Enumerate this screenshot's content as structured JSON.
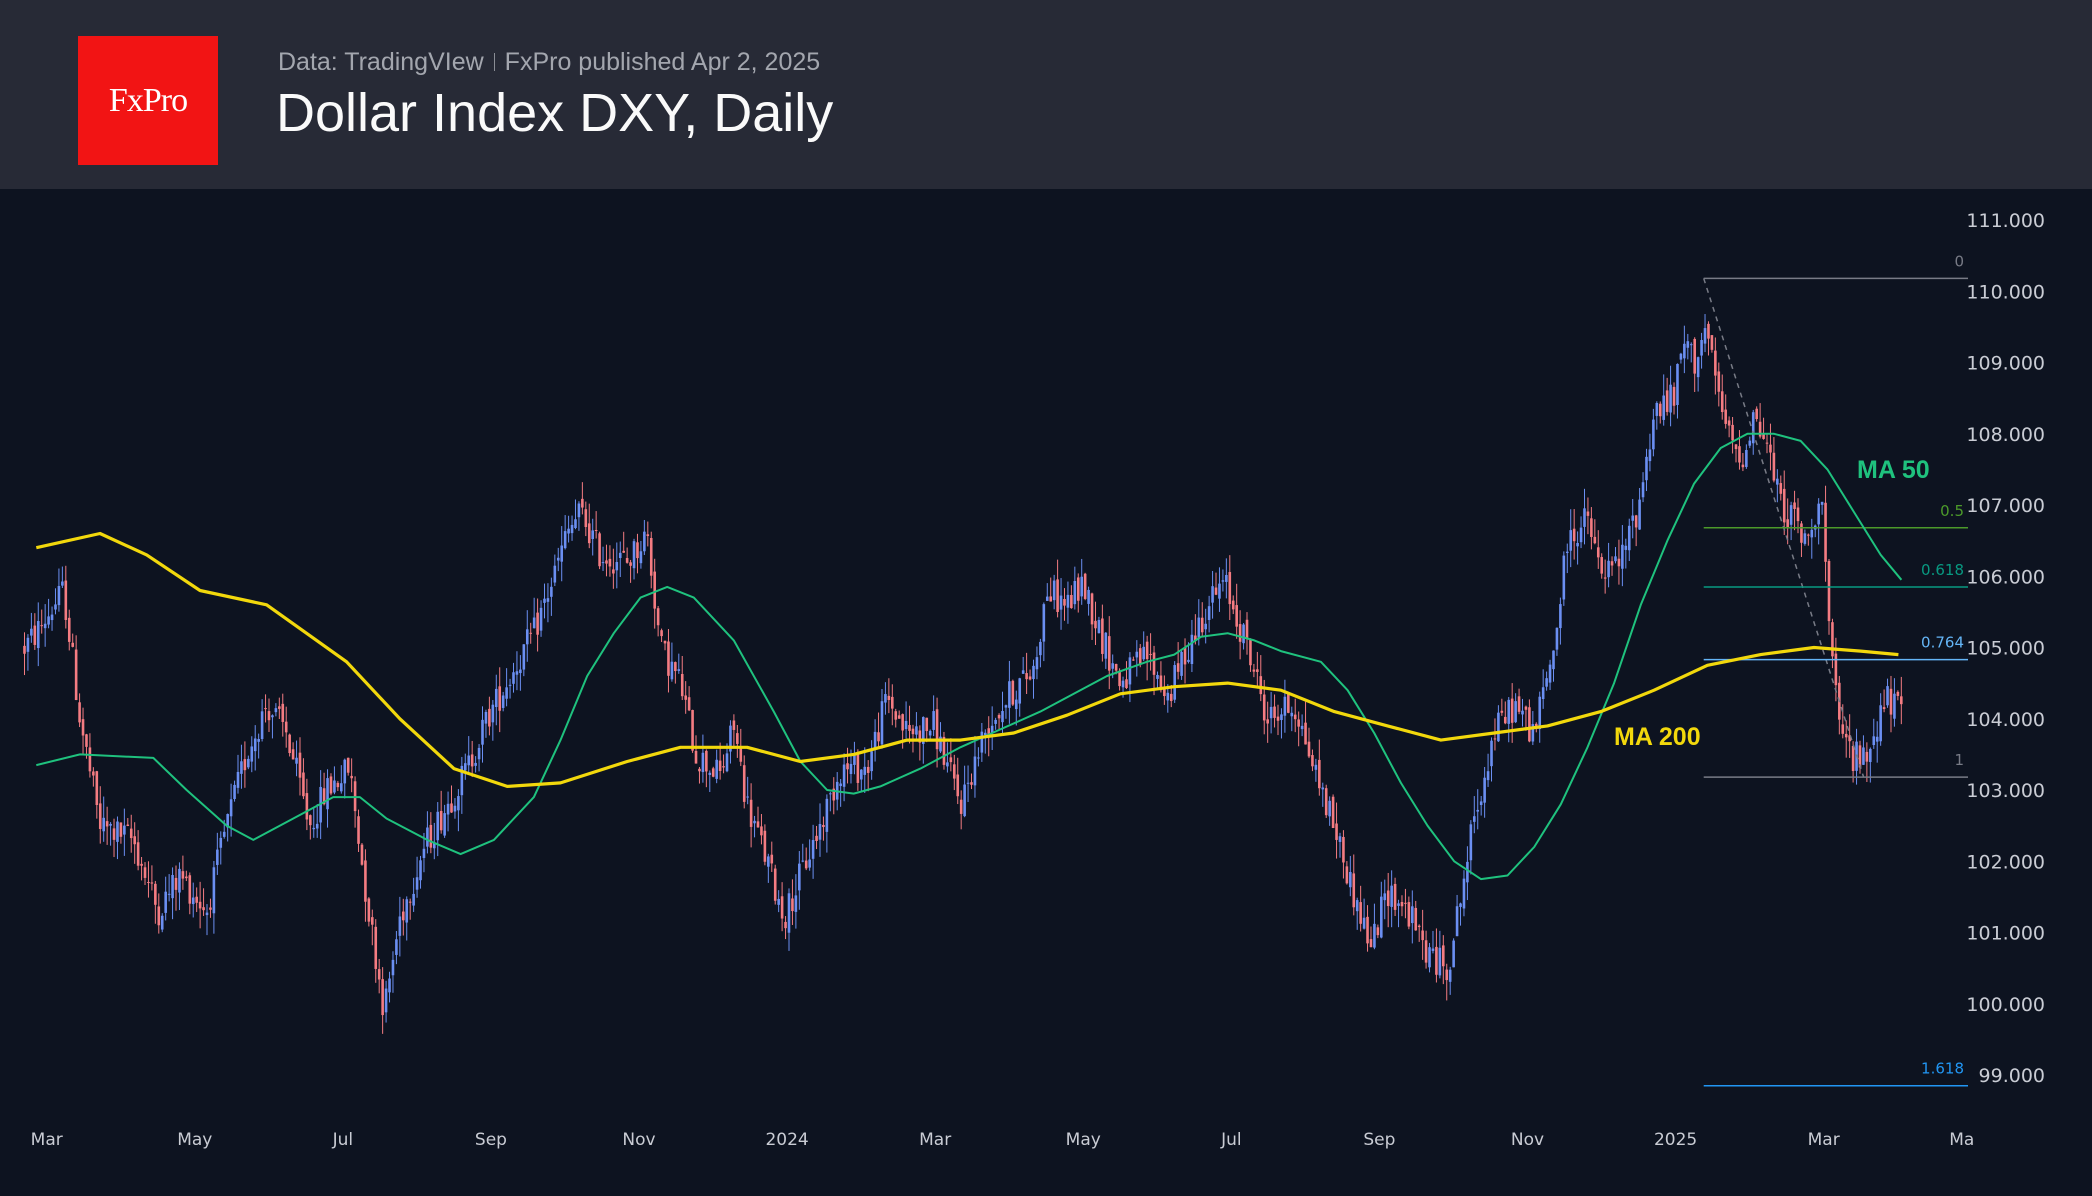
{
  "header": {
    "logo_text": "FxPro",
    "data_source": "Data: TradingVIew",
    "published": "FxPro published Apr 2, 2025",
    "title": "Dollar Index DXY, Daily"
  },
  "colors": {
    "header_bg": "#272a36",
    "chart_bg": "#0d1320",
    "logo_red": "#f21414",
    "candle_up": "#6b8ff2",
    "candle_down": "#f47c82",
    "ma50": "#1fc27e",
    "ma200": "#f2d80c"
  },
  "chart_data": {
    "type": "candlestick",
    "title": "Dollar Index DXY, Daily",
    "x_unit": "months since Mar 2023",
    "x_ticks": [
      {
        "m": 0,
        "label": "Mar"
      },
      {
        "m": 2,
        "label": "May"
      },
      {
        "m": 4,
        "label": "Jul"
      },
      {
        "m": 6,
        "label": "Sep"
      },
      {
        "m": 8,
        "label": "Nov"
      },
      {
        "m": 10,
        "label": "2024"
      },
      {
        "m": 12,
        "label": "Mar"
      },
      {
        "m": 14,
        "label": "May"
      },
      {
        "m": 16,
        "label": "Jul"
      },
      {
        "m": 18,
        "label": "Sep"
      },
      {
        "m": 20,
        "label": "Nov"
      },
      {
        "m": 22,
        "label": "2025"
      },
      {
        "m": 24,
        "label": "Mar"
      },
      {
        "m": 26,
        "label": "Ma"
      }
    ],
    "y_ticks": [
      "111.000",
      "110.000",
      "109.000",
      "108.000",
      "107.000",
      "106.000",
      "105.000",
      "104.000",
      "103.000",
      "102.000",
      "101.000",
      "100.000",
      "99.000"
    ],
    "ylim": [
      99,
      111
    ],
    "price_path": [
      [
        -0.3,
        105.0
      ],
      [
        -0.14,
        105.2
      ],
      [
        0.23,
        105.8
      ],
      [
        0.45,
        104.0
      ],
      [
        0.72,
        102.5
      ],
      [
        1.17,
        102.3
      ],
      [
        1.5,
        101.3
      ],
      [
        1.8,
        101.8
      ],
      [
        2.16,
        101.3
      ],
      [
        2.43,
        102.5
      ],
      [
        2.7,
        103.5
      ],
      [
        2.97,
        104.2
      ],
      [
        3.24,
        103.8
      ],
      [
        3.55,
        102.5
      ],
      [
        3.78,
        103.0
      ],
      [
        4.09,
        103.3
      ],
      [
        4.32,
        101.5
      ],
      [
        4.56,
        99.9
      ],
      [
        4.77,
        101.2
      ],
      [
        5.1,
        102.2
      ],
      [
        5.41,
        102.8
      ],
      [
        5.68,
        103.3
      ],
      [
        5.95,
        104.0
      ],
      [
        6.31,
        104.7
      ],
      [
        6.58,
        105.2
      ],
      [
        6.85,
        106.0
      ],
      [
        7.03,
        106.6
      ],
      [
        7.21,
        106.9
      ],
      [
        7.48,
        106.3
      ],
      [
        7.84,
        106.2
      ],
      [
        8.11,
        106.6
      ],
      [
        8.29,
        105.0
      ],
      [
        8.56,
        104.5
      ],
      [
        8.77,
        103.5
      ],
      [
        9.1,
        103.2
      ],
      [
        9.28,
        103.9
      ],
      [
        9.46,
        102.8
      ],
      [
        9.73,
        102.0
      ],
      [
        9.96,
        101.2
      ],
      [
        10.18,
        101.8
      ],
      [
        10.45,
        102.5
      ],
      [
        10.72,
        103.3
      ],
      [
        11.08,
        103.3
      ],
      [
        11.35,
        104.3
      ],
      [
        11.62,
        103.8
      ],
      [
        11.98,
        103.9
      ],
      [
        12.34,
        102.8
      ],
      [
        12.7,
        103.9
      ],
      [
        13.06,
        104.4
      ],
      [
        13.33,
        104.7
      ],
      [
        13.51,
        105.8
      ],
      [
        13.78,
        105.6
      ],
      [
        14.0,
        105.9
      ],
      [
        14.23,
        105.2
      ],
      [
        14.5,
        104.5
      ],
      [
        14.86,
        104.9
      ],
      [
        15.14,
        104.3
      ],
      [
        15.41,
        105.0
      ],
      [
        15.68,
        105.6
      ],
      [
        15.91,
        105.9
      ],
      [
        16.22,
        105.0
      ],
      [
        16.49,
        104.0
      ],
      [
        16.85,
        104.2
      ],
      [
        17.12,
        103.3
      ],
      [
        17.39,
        102.5
      ],
      [
        17.66,
        101.5
      ],
      [
        17.89,
        100.8
      ],
      [
        18.11,
        101.6
      ],
      [
        18.38,
        101.3
      ],
      [
        18.65,
        100.7
      ],
      [
        18.92,
        100.5
      ],
      [
        19.1,
        101.5
      ],
      [
        19.28,
        102.6
      ],
      [
        19.55,
        103.8
      ],
      [
        19.82,
        104.2
      ],
      [
        20.09,
        103.8
      ],
      [
        20.36,
        105.0
      ],
      [
        20.54,
        106.5
      ],
      [
        20.81,
        106.8
      ],
      [
        20.99,
        106.0
      ],
      [
        21.26,
        106.2
      ],
      [
        21.5,
        107.0
      ],
      [
        21.71,
        108.3
      ],
      [
        21.98,
        108.5
      ],
      [
        22.11,
        109.3
      ],
      [
        22.25,
        109.0
      ],
      [
        22.4,
        109.5
      ],
      [
        22.52,
        108.8
      ],
      [
        22.7,
        108.0
      ],
      [
        22.88,
        107.6
      ],
      [
        23.06,
        108.3
      ],
      [
        23.24,
        107.8
      ],
      [
        23.42,
        107.0
      ],
      [
        23.6,
        106.8
      ],
      [
        23.78,
        106.4
      ],
      [
        23.96,
        107.3
      ],
      [
        24.09,
        105.0
      ],
      [
        24.2,
        103.9
      ],
      [
        24.38,
        103.5
      ],
      [
        24.56,
        103.4
      ],
      [
        24.68,
        103.8
      ],
      [
        24.83,
        104.3
      ],
      [
        24.95,
        104.2
      ],
      [
        25.05,
        104.0
      ]
    ],
    "series": [
      {
        "name": "MA 50",
        "label": "MA 50",
        "points": [
          [
            -0.14,
            103.35
          ],
          [
            0.45,
            103.5
          ],
          [
            1.44,
            103.45
          ],
          [
            1.89,
            103.0
          ],
          [
            2.43,
            102.5
          ],
          [
            2.79,
            102.3
          ],
          [
            3.33,
            102.6
          ],
          [
            3.87,
            102.9
          ],
          [
            4.23,
            102.9
          ],
          [
            4.59,
            102.6
          ],
          [
            5.14,
            102.3
          ],
          [
            5.59,
            102.1
          ],
          [
            6.04,
            102.3
          ],
          [
            6.58,
            102.9
          ],
          [
            6.94,
            103.7
          ],
          [
            7.3,
            104.6
          ],
          [
            7.66,
            105.2
          ],
          [
            8.02,
            105.7
          ],
          [
            8.38,
            105.85
          ],
          [
            8.74,
            105.7
          ],
          [
            9.28,
            105.1
          ],
          [
            9.82,
            104.1
          ],
          [
            10.18,
            103.4
          ],
          [
            10.54,
            103.0
          ],
          [
            10.9,
            102.95
          ],
          [
            11.26,
            103.05
          ],
          [
            11.8,
            103.3
          ],
          [
            12.34,
            103.6
          ],
          [
            12.88,
            103.85
          ],
          [
            13.42,
            104.1
          ],
          [
            13.78,
            104.3
          ],
          [
            14.32,
            104.6
          ],
          [
            14.86,
            104.8
          ],
          [
            15.23,
            104.9
          ],
          [
            15.59,
            105.15
          ],
          [
            15.95,
            105.2
          ],
          [
            16.31,
            105.1
          ],
          [
            16.67,
            104.95
          ],
          [
            17.21,
            104.8
          ],
          [
            17.57,
            104.4
          ],
          [
            17.93,
            103.8
          ],
          [
            18.29,
            103.1
          ],
          [
            18.65,
            102.5
          ],
          [
            19.01,
            102.0
          ],
          [
            19.37,
            101.75
          ],
          [
            19.73,
            101.8
          ],
          [
            20.09,
            102.2
          ],
          [
            20.45,
            102.8
          ],
          [
            20.81,
            103.6
          ],
          [
            21.17,
            104.5
          ],
          [
            21.53,
            105.6
          ],
          [
            21.89,
            106.5
          ],
          [
            22.25,
            107.3
          ],
          [
            22.61,
            107.8
          ],
          [
            22.97,
            108.0
          ],
          [
            23.33,
            108.0
          ],
          [
            23.69,
            107.9
          ],
          [
            24.05,
            107.5
          ],
          [
            24.41,
            106.9
          ],
          [
            24.77,
            106.3
          ],
          [
            25.05,
            105.95
          ]
        ]
      },
      {
        "name": "MA 200",
        "label": "MA 200",
        "points": [
          [
            -0.14,
            106.4
          ],
          [
            0.72,
            106.6
          ],
          [
            1.35,
            106.3
          ],
          [
            2.07,
            105.8
          ],
          [
            2.97,
            105.6
          ],
          [
            4.05,
            104.8
          ],
          [
            4.77,
            104.0
          ],
          [
            5.5,
            103.3
          ],
          [
            6.22,
            103.05
          ],
          [
            6.94,
            103.1
          ],
          [
            7.84,
            103.4
          ],
          [
            8.56,
            103.6
          ],
          [
            9.46,
            103.6
          ],
          [
            10.18,
            103.4
          ],
          [
            10.9,
            103.5
          ],
          [
            11.62,
            103.7
          ],
          [
            12.34,
            103.7
          ],
          [
            13.06,
            103.8
          ],
          [
            13.78,
            104.05
          ],
          [
            14.5,
            104.35
          ],
          [
            15.23,
            104.45
          ],
          [
            15.95,
            104.5
          ],
          [
            16.67,
            104.4
          ],
          [
            17.39,
            104.1
          ],
          [
            18.11,
            103.9
          ],
          [
            18.83,
            103.7
          ],
          [
            19.55,
            103.8
          ],
          [
            20.27,
            103.9
          ],
          [
            20.99,
            104.1
          ],
          [
            21.71,
            104.4
          ],
          [
            22.43,
            104.75
          ],
          [
            23.15,
            104.9
          ],
          [
            23.87,
            105.0
          ],
          [
            24.5,
            104.95
          ],
          [
            25.01,
            104.9
          ]
        ]
      }
    ],
    "fibonacci": {
      "start_m": 22.38,
      "high": 110.18,
      "low": 103.18,
      "low_m": 24.54,
      "levels": [
        {
          "ratio": "0",
          "price": 110.18,
          "color": "#787b86"
        },
        {
          "ratio": "0.5",
          "price": 106.68,
          "color": "#4c9a2a"
        },
        {
          "ratio": "0.618",
          "price": 105.85,
          "color": "#089981"
        },
        {
          "ratio": "0.764",
          "price": 104.83,
          "color": "#64b5f6"
        },
        {
          "ratio": "1",
          "price": 103.18,
          "color": "#787b86"
        },
        {
          "ratio": "1.618",
          "price": 98.85,
          "color": "#2196f3"
        }
      ]
    }
  }
}
